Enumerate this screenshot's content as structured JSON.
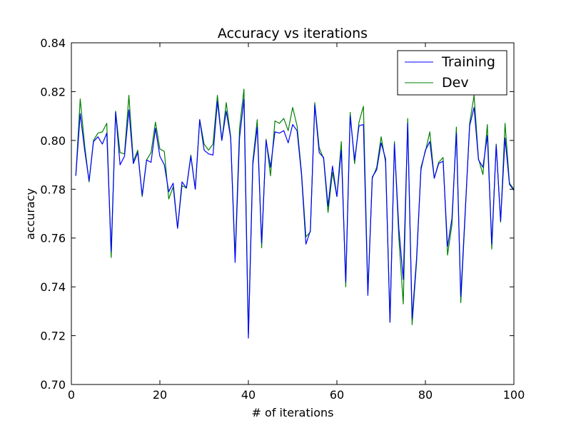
{
  "chart_data": {
    "type": "line",
    "title": "Accuracy vs iterations",
    "xlabel": "# of iterations",
    "ylabel": "accuracy",
    "xlim": [
      0,
      100
    ],
    "ylim": [
      0.7,
      0.84
    ],
    "xticks": [
      0,
      20,
      40,
      60,
      80,
      100
    ],
    "yticks": [
      0.7,
      0.72,
      0.74,
      0.76,
      0.78,
      0.8,
      0.82,
      0.84
    ],
    "xtick_labels": [
      "0",
      "20",
      "40",
      "60",
      "80",
      "100"
    ],
    "ytick_labels": [
      "0.70",
      "0.72",
      "0.74",
      "0.76",
      "0.78",
      "0.80",
      "0.82",
      "0.84"
    ],
    "legend_position": "top-right",
    "grid": false,
    "x": [
      1,
      2,
      3,
      4,
      5,
      6,
      7,
      8,
      9,
      10,
      11,
      12,
      13,
      14,
      15,
      16,
      17,
      18,
      19,
      20,
      21,
      22,
      23,
      24,
      25,
      26,
      27,
      28,
      29,
      30,
      31,
      32,
      33,
      34,
      35,
      36,
      37,
      38,
      39,
      40,
      41,
      42,
      43,
      44,
      45,
      46,
      47,
      48,
      49,
      50,
      51,
      52,
      53,
      54,
      55,
      56,
      57,
      58,
      59,
      60,
      61,
      62,
      63,
      64,
      65,
      66,
      67,
      68,
      69,
      70,
      71,
      72,
      73,
      74,
      75,
      76,
      77,
      78,
      79,
      80,
      81,
      82,
      83,
      84,
      85,
      86,
      87,
      88,
      89,
      90,
      91,
      92,
      93,
      94,
      95,
      96,
      97,
      98,
      99,
      100
    ],
    "series": [
      {
        "name": "Training",
        "color": "#0000ff",
        "values": [
          0.7855,
          0.811,
          0.796,
          0.7835,
          0.7995,
          0.8015,
          0.7985,
          0.803,
          0.7545,
          0.8115,
          0.79,
          0.7935,
          0.8125,
          0.7905,
          0.795,
          0.7775,
          0.792,
          0.791,
          0.805,
          0.7935,
          0.79,
          0.779,
          0.7825,
          0.764,
          0.783,
          0.7805,
          0.7935,
          0.78,
          0.8085,
          0.796,
          0.7945,
          0.794,
          0.816,
          0.8,
          0.812,
          0.801,
          0.75,
          0.801,
          0.817,
          0.719,
          0.79,
          0.8055,
          0.758,
          0.8,
          0.789,
          0.8035,
          0.803,
          0.804,
          0.799,
          0.8065,
          0.804,
          0.786,
          0.7575,
          0.763,
          0.8145,
          0.795,
          0.793,
          0.773,
          0.7895,
          0.777,
          0.796,
          0.742,
          0.81,
          0.792,
          0.806,
          0.8065,
          0.7365,
          0.785,
          0.788,
          0.799,
          0.7925,
          0.7255,
          0.7985,
          0.764,
          0.743,
          0.807,
          0.727,
          0.7515,
          0.788,
          0.796,
          0.7995,
          0.7845,
          0.7905,
          0.7915,
          0.7565,
          0.768,
          0.803,
          0.736,
          0.771,
          0.806,
          0.8135,
          0.792,
          0.789,
          0.802,
          0.7575,
          0.798,
          0.767,
          0.801,
          0.782,
          0.7795
        ]
      },
      {
        "name": "Dev",
        "color": "#008000",
        "values": [
          0.7855,
          0.817,
          0.798,
          0.783,
          0.8,
          0.803,
          0.8035,
          0.807,
          0.752,
          0.812,
          0.795,
          0.7945,
          0.8185,
          0.7915,
          0.796,
          0.777,
          0.792,
          0.795,
          0.8075,
          0.7965,
          0.7955,
          0.776,
          0.781,
          0.764,
          0.7815,
          0.7805,
          0.794,
          0.78,
          0.8085,
          0.7985,
          0.796,
          0.7985,
          0.8185,
          0.8,
          0.8155,
          0.8015,
          0.752,
          0.805,
          0.821,
          0.7205,
          0.7915,
          0.8085,
          0.756,
          0.8005,
          0.7855,
          0.808,
          0.807,
          0.809,
          0.804,
          0.8135,
          0.806,
          0.787,
          0.7605,
          0.7625,
          0.8155,
          0.797,
          0.7925,
          0.7705,
          0.787,
          0.777,
          0.7995,
          0.74,
          0.8115,
          0.7905,
          0.8075,
          0.814,
          0.738,
          0.7845,
          0.789,
          0.8015,
          0.791,
          0.7255,
          0.7995,
          0.76,
          0.733,
          0.809,
          0.7245,
          0.75,
          0.789,
          0.7955,
          0.8035,
          0.7845,
          0.791,
          0.793,
          0.753,
          0.7655,
          0.8055,
          0.7335,
          0.77,
          0.807,
          0.8185,
          0.7925,
          0.786,
          0.8065,
          0.7555,
          0.7985,
          0.7665,
          0.807,
          0.7825,
          0.78
        ]
      }
    ]
  }
}
